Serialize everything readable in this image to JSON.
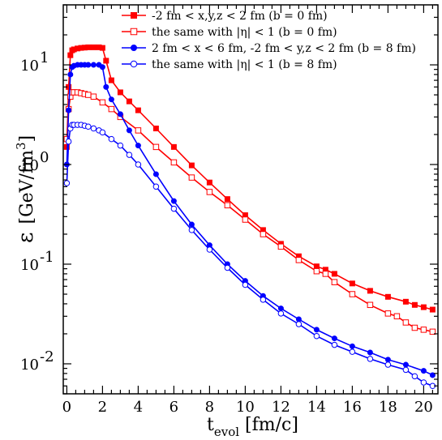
{
  "chart_data": {
    "type": "line",
    "y_scale": "log",
    "grid": false,
    "legend_position": "top-right",
    "xlim": [
      -0.2,
      20.8
    ],
    "ylim": [
      0.005,
      40
    ],
    "x_ticks": [
      0,
      2,
      4,
      6,
      8,
      10,
      12,
      14,
      16,
      18,
      20
    ],
    "x_tick_labels": [
      "0",
      "2",
      "4",
      "6",
      "8",
      "10",
      "12",
      "14",
      "16",
      "18",
      "20"
    ],
    "y_ticks": [
      0.01,
      0.1,
      1,
      10
    ],
    "y_tick_labels": [
      {
        "base": "10",
        "exp": "-2"
      },
      {
        "base": "10",
        "exp": "-1"
      },
      {
        "base": "10",
        "exp": "0"
      },
      {
        "base": "10",
        "exp": "1"
      }
    ],
    "xlabel": {
      "main": "t",
      "sub": "evol",
      "unit": " [fm/c]"
    },
    "ylabel": {
      "symbol": "ε",
      "unit_pre": "[GeV/fm",
      "unit_sup": "3",
      "unit_post": "]"
    },
    "series": [
      {
        "name": "-2 fm < x,y,z < 2 fm (b = 0 fm)",
        "color": "#ff0000",
        "marker": "square",
        "filled": true,
        "x": [
          0.0,
          0.1,
          0.2,
          0.3,
          0.4,
          0.6,
          0.8,
          1.0,
          1.2,
          1.5,
          1.8,
          2.0,
          2.2,
          2.5,
          3.0,
          3.5,
          4.0,
          5.0,
          6.0,
          7.0,
          8.0,
          9.0,
          10.0,
          11.0,
          12.0,
          13.0,
          14.0,
          14.5,
          15.0,
          16.0,
          17.0,
          18.0,
          19.0,
          19.5,
          20.0,
          20.5
        ],
        "y": [
          1.5,
          6.0,
          12.5,
          14.0,
          14.3,
          14.6,
          14.8,
          14.9,
          15.0,
          15.0,
          15.0,
          14.8,
          11.0,
          7.0,
          5.3,
          4.3,
          3.5,
          2.3,
          1.5,
          0.98,
          0.66,
          0.45,
          0.31,
          0.22,
          0.16,
          0.12,
          0.095,
          0.088,
          0.08,
          0.064,
          0.054,
          0.047,
          0.042,
          0.039,
          0.037,
          0.035
        ]
      },
      {
        "name": "the same with |η| < 1 (b = 0 fm)",
        "color": "#ff0000",
        "marker": "square",
        "filled": false,
        "x": [
          0.0,
          0.1,
          0.2,
          0.3,
          0.4,
          0.6,
          0.8,
          1.0,
          1.2,
          1.5,
          2.0,
          2.5,
          3.0,
          4.0,
          5.0,
          6.0,
          7.0,
          8.0,
          9.0,
          10.0,
          11.0,
          12.0,
          13.0,
          14.0,
          14.5,
          15.0,
          16.0,
          17.0,
          18.0,
          18.5,
          19.0,
          19.5,
          20.0,
          20.5
        ],
        "y": [
          1.8,
          3.6,
          4.8,
          5.3,
          5.3,
          5.3,
          5.2,
          5.1,
          5.0,
          4.8,
          4.2,
          3.6,
          3.0,
          2.2,
          1.5,
          1.05,
          0.74,
          0.53,
          0.39,
          0.28,
          0.2,
          0.15,
          0.11,
          0.085,
          0.08,
          0.066,
          0.05,
          0.039,
          0.032,
          0.03,
          0.026,
          0.023,
          0.022,
          0.021
        ]
      },
      {
        "name": "2 fm < x < 6 fm, -2 fm < y,z < 2 fm (b = 8 fm)",
        "color": "#0000ff",
        "marker": "circle",
        "filled": true,
        "x": [
          0.0,
          0.1,
          0.2,
          0.3,
          0.4,
          0.6,
          0.8,
          1.0,
          1.2,
          1.5,
          1.8,
          2.0,
          2.2,
          2.5,
          3.0,
          3.5,
          4.0,
          5.0,
          6.0,
          7.0,
          8.0,
          9.0,
          10.0,
          11.0,
          12.0,
          13.0,
          14.0,
          15.0,
          16.0,
          17.0,
          18.0,
          19.0,
          20.0,
          20.5
        ],
        "y": [
          1.0,
          3.5,
          8.0,
          9.5,
          9.8,
          10.0,
          10.0,
          10.0,
          10.0,
          10.0,
          10.0,
          9.5,
          6.0,
          4.5,
          3.2,
          2.2,
          1.55,
          0.8,
          0.43,
          0.25,
          0.155,
          0.1,
          0.068,
          0.048,
          0.036,
          0.028,
          0.022,
          0.018,
          0.015,
          0.013,
          0.011,
          0.0098,
          0.0085,
          0.0077
        ]
      },
      {
        "name": "the same with |η| < 1 (b = 8 fm)",
        "color": "#0000ff",
        "marker": "circle",
        "filled": false,
        "x": [
          0.0,
          0.1,
          0.2,
          0.3,
          0.4,
          0.6,
          0.8,
          1.0,
          1.2,
          1.5,
          1.8,
          2.0,
          2.5,
          3.0,
          3.5,
          4.0,
          5.0,
          6.0,
          7.0,
          8.0,
          9.0,
          10.0,
          11.0,
          12.0,
          13.0,
          14.0,
          15.0,
          16.0,
          17.0,
          18.0,
          19.0,
          19.5,
          20.0,
          20.5
        ],
        "y": [
          0.65,
          1.7,
          2.3,
          2.5,
          2.5,
          2.5,
          2.5,
          2.45,
          2.4,
          2.3,
          2.2,
          2.1,
          1.8,
          1.55,
          1.25,
          1.0,
          0.6,
          0.36,
          0.22,
          0.14,
          0.092,
          0.062,
          0.044,
          0.032,
          0.025,
          0.019,
          0.0155,
          0.0132,
          0.0112,
          0.0098,
          0.0087,
          0.0075,
          0.0065,
          0.006
        ]
      }
    ]
  }
}
